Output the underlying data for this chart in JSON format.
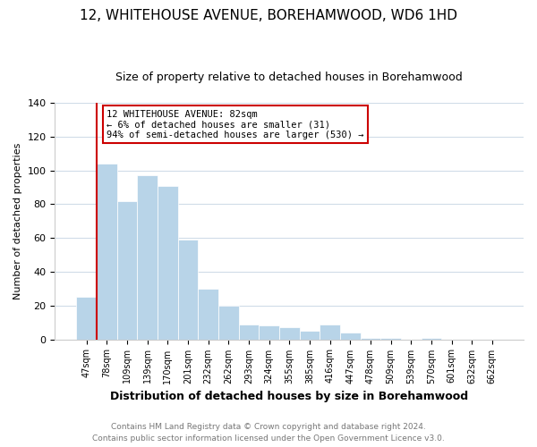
{
  "title": "12, WHITEHOUSE AVENUE, BOREHAMWOOD, WD6 1HD",
  "subtitle": "Size of property relative to detached houses in Borehamwood",
  "xlabel": "Distribution of detached houses by size in Borehamwood",
  "ylabel": "Number of detached properties",
  "bar_labels": [
    "47sqm",
    "78sqm",
    "109sqm",
    "139sqm",
    "170sqm",
    "201sqm",
    "232sqm",
    "262sqm",
    "293sqm",
    "324sqm",
    "355sqm",
    "385sqm",
    "416sqm",
    "447sqm",
    "478sqm",
    "509sqm",
    "539sqm",
    "570sqm",
    "601sqm",
    "632sqm",
    "662sqm"
  ],
  "bar_values": [
    25,
    104,
    82,
    97,
    91,
    59,
    30,
    20,
    9,
    8,
    7,
    5,
    9,
    4,
    1,
    1,
    0,
    1,
    0,
    0,
    0
  ],
  "bar_color": "#b8d4e8",
  "bar_edge_color": "#ffffff",
  "vline_color": "#cc0000",
  "annotation_text": "12 WHITEHOUSE AVENUE: 82sqm\n← 6% of detached houses are smaller (31)\n94% of semi-detached houses are larger (530) →",
  "annotation_box_color": "#ffffff",
  "annotation_box_edge_color": "#cc0000",
  "ylim": [
    0,
    140
  ],
  "yticks": [
    0,
    20,
    40,
    60,
    80,
    100,
    120,
    140
  ],
  "footer_line1": "Contains HM Land Registry data © Crown copyright and database right 2024.",
  "footer_line2": "Contains public sector information licensed under the Open Government Licence v3.0.",
  "background_color": "#ffffff",
  "grid_color": "#d0dce8",
  "title_fontsize": 11,
  "subtitle_fontsize": 9,
  "xlabel_fontsize": 9,
  "ylabel_fontsize": 8,
  "tick_fontsize": 7,
  "footer_fontsize": 6.5
}
